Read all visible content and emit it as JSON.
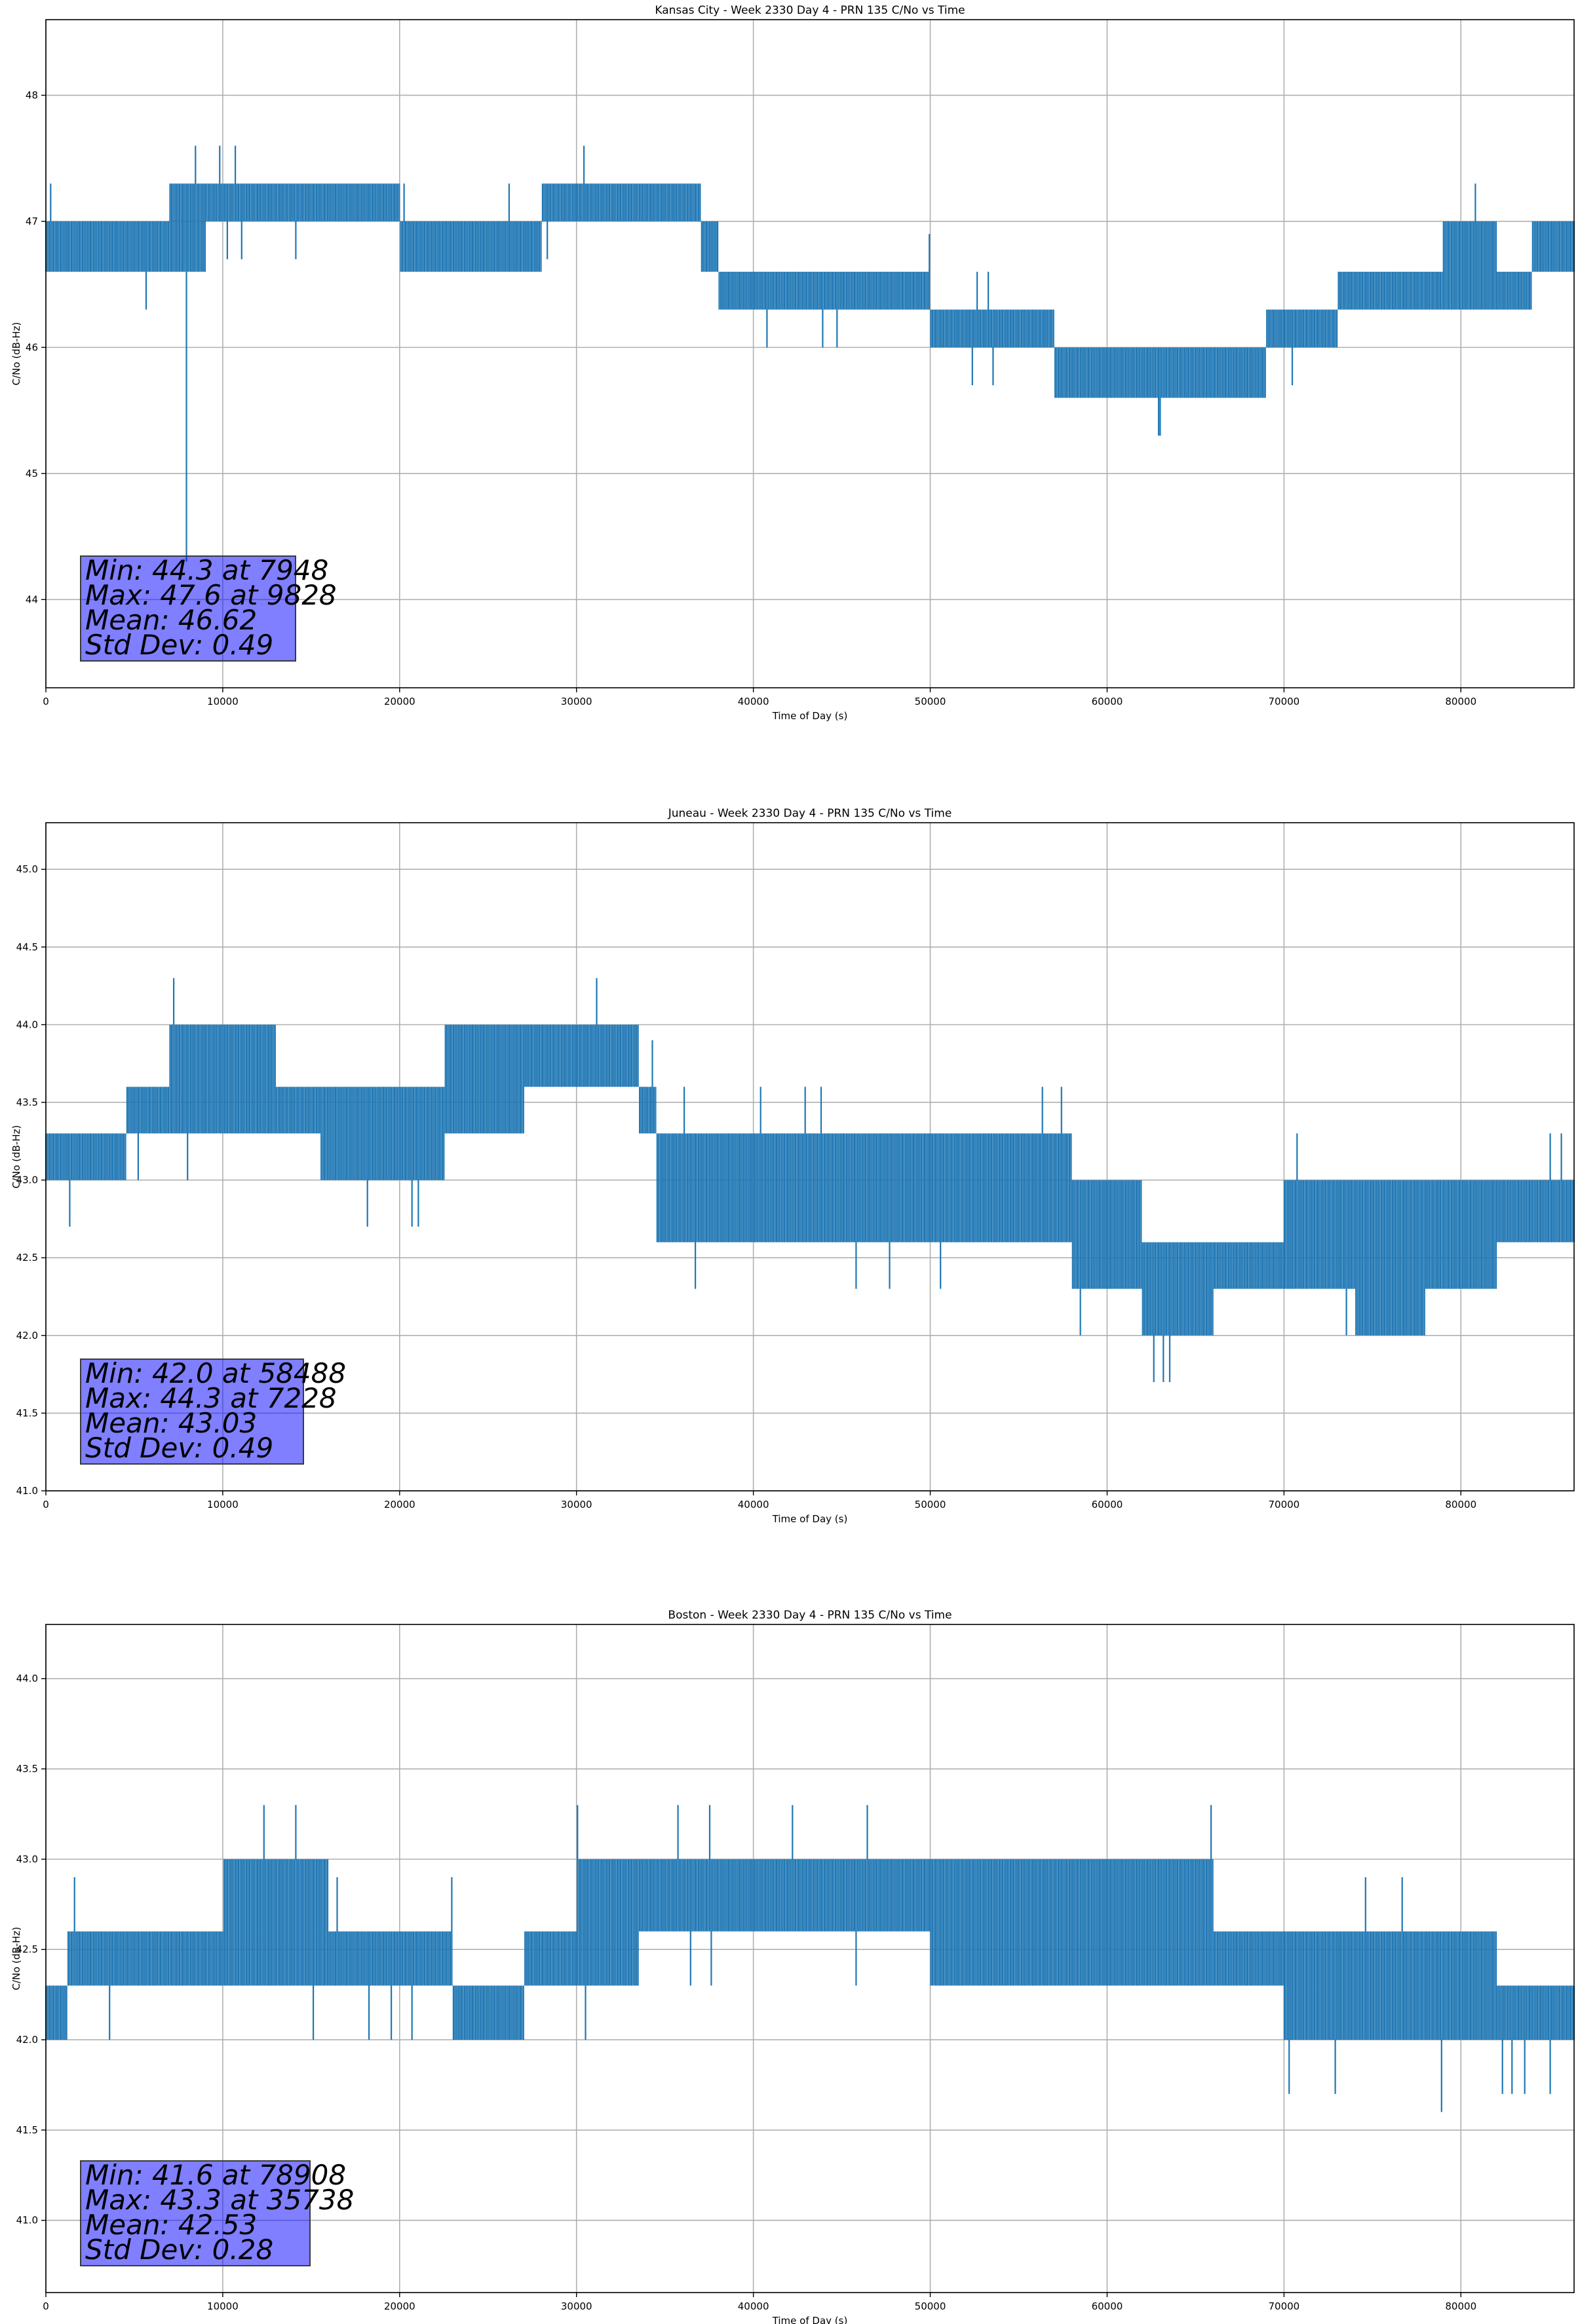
{
  "chart_data": [
    {
      "type": "line",
      "title": "Kansas City - Week 2330 Day 4 - PRN 135 C/No vs Time",
      "xlabel": "Time of Day (s)",
      "ylabel": "C/No (dB-Hz)",
      "xlim": [
        0,
        86400
      ],
      "ylim": [
        43.3,
        48.6
      ],
      "xticks": [
        0,
        10000,
        20000,
        30000,
        40000,
        50000,
        60000,
        70000,
        80000
      ],
      "yticks": [
        44,
        45,
        46,
        47,
        48
      ],
      "ytick_labels": [
        "44",
        "45",
        "46",
        "47",
        "48"
      ],
      "grid": true,
      "color": "#1f77b4",
      "series": [
        {
          "name": "C/No",
          "x": [
            0,
            3500,
            7000,
            9000,
            14000,
            20000,
            24000,
            28000,
            33000,
            37000,
            38000,
            42000,
            45000,
            49000,
            50000,
            54000,
            57000,
            60000,
            64000,
            68000,
            69000,
            72000,
            73000,
            77000,
            79000,
            82000,
            84000,
            86400
          ],
          "low": [
            46.6,
            46.6,
            46.6,
            47.0,
            47.0,
            46.6,
            46.6,
            47.0,
            47.0,
            46.6,
            46.3,
            46.3,
            46.3,
            46.3,
            46.0,
            46.0,
            45.6,
            45.6,
            45.6,
            45.6,
            46.0,
            46.0,
            46.3,
            46.3,
            46.3,
            46.3,
            46.6,
            46.6
          ],
          "high": [
            47.0,
            47.0,
            47.3,
            47.3,
            47.3,
            47.0,
            47.0,
            47.3,
            47.3,
            47.0,
            46.6,
            46.6,
            46.6,
            46.6,
            46.3,
            46.3,
            46.0,
            46.0,
            46.0,
            46.0,
            46.3,
            46.3,
            46.6,
            46.6,
            47.0,
            46.6,
            47.0,
            47.0
          ]
        }
      ],
      "annotation": [
        "Min: 44.3 at 7948",
        "Max: 47.6 at 9828",
        "Mean: 46.62",
        "Std Dev: 0.49"
      ]
    },
    {
      "type": "line",
      "title": "Juneau - Week 2330 Day 4 - PRN 135 C/No vs Time",
      "xlabel": "Time of Day (s)",
      "ylabel": "C/No (dB-Hz)",
      "xlim": [
        0,
        86400
      ],
      "ylim": [
        41.0,
        45.3
      ],
      "xticks": [
        0,
        10000,
        20000,
        30000,
        40000,
        50000,
        60000,
        70000,
        80000
      ],
      "yticks": [
        41.0,
        41.5,
        42.0,
        42.5,
        43.0,
        43.5,
        44.0,
        44.5,
        45.0
      ],
      "ytick_labels": [
        "41.0",
        "41.5",
        "42.0",
        "42.5",
        "43.0",
        "43.5",
        "44.0",
        "44.5",
        "45.0"
      ],
      "grid": true,
      "color": "#1f77b4",
      "series": [
        {
          "name": "C/No",
          "x": [
            0,
            3500,
            4500,
            7000,
            10000,
            13000,
            15500,
            18000,
            22500,
            27000,
            31000,
            33500,
            34500,
            38000,
            42000,
            46000,
            50000,
            54000,
            57000,
            58000,
            62000,
            66000,
            70000,
            74000,
            78000,
            82000,
            86400
          ],
          "low": [
            43.0,
            43.0,
            43.3,
            43.3,
            43.3,
            43.3,
            43.0,
            43.0,
            43.3,
            43.6,
            43.6,
            43.3,
            42.6,
            42.6,
            42.6,
            42.6,
            42.6,
            42.6,
            42.6,
            42.3,
            42.0,
            42.3,
            42.3,
            42.0,
            42.3,
            42.6,
            42.6
          ],
          "high": [
            43.3,
            43.3,
            43.6,
            44.0,
            44.0,
            43.6,
            43.6,
            43.6,
            44.0,
            44.0,
            44.0,
            43.6,
            43.3,
            43.3,
            43.3,
            43.3,
            43.3,
            43.3,
            43.3,
            43.0,
            42.6,
            42.6,
            43.0,
            43.0,
            43.0,
            43.0,
            43.0
          ]
        }
      ],
      "annotation": [
        "Min: 42.0 at 58488",
        "Max: 44.3 at 7228",
        "Mean: 43.03",
        "Std Dev: 0.49"
      ]
    },
    {
      "type": "line",
      "title": "Boston - Week 2330 Day 4 - PRN 135 C/No vs Time",
      "xlabel": "Time of Day (s)",
      "ylabel": "C/No (dB-Hz)",
      "xlim": [
        0,
        86400
      ],
      "ylim": [
        40.6,
        44.3
      ],
      "xticks": [
        0,
        10000,
        20000,
        30000,
        40000,
        50000,
        60000,
        70000,
        80000
      ],
      "yticks": [
        41.0,
        41.5,
        42.0,
        42.5,
        43.0,
        43.5,
        44.0
      ],
      "ytick_labels": [
        "41.0",
        "41.5",
        "42.0",
        "42.5",
        "43.0",
        "43.5",
        "44.0"
      ],
      "grid": true,
      "color": "#1f77b4",
      "series": [
        {
          "name": "C/No",
          "x": [
            0,
            1200,
            6000,
            10000,
            16000,
            20000,
            23000,
            27000,
            30000,
            33500,
            38000,
            42000,
            46000,
            50000,
            56000,
            60000,
            66000,
            70000,
            74000,
            78000,
            82000,
            86400
          ],
          "low": [
            42.0,
            42.3,
            42.3,
            42.3,
            42.3,
            42.3,
            42.0,
            42.3,
            42.3,
            42.6,
            42.6,
            42.6,
            42.6,
            42.3,
            42.3,
            42.3,
            42.3,
            42.0,
            42.0,
            42.0,
            42.0,
            42.0
          ],
          "high": [
            42.3,
            42.6,
            42.6,
            43.0,
            42.6,
            42.6,
            42.3,
            42.6,
            43.0,
            43.0,
            43.0,
            43.0,
            43.0,
            43.0,
            43.0,
            43.0,
            42.6,
            42.6,
            42.6,
            42.6,
            42.3,
            42.3
          ]
        }
      ],
      "annotation": [
        "Min: 41.6 at 78908",
        "Max: 43.3 at 35738",
        "Mean: 42.53",
        "Std Dev: 0.28"
      ]
    }
  ]
}
